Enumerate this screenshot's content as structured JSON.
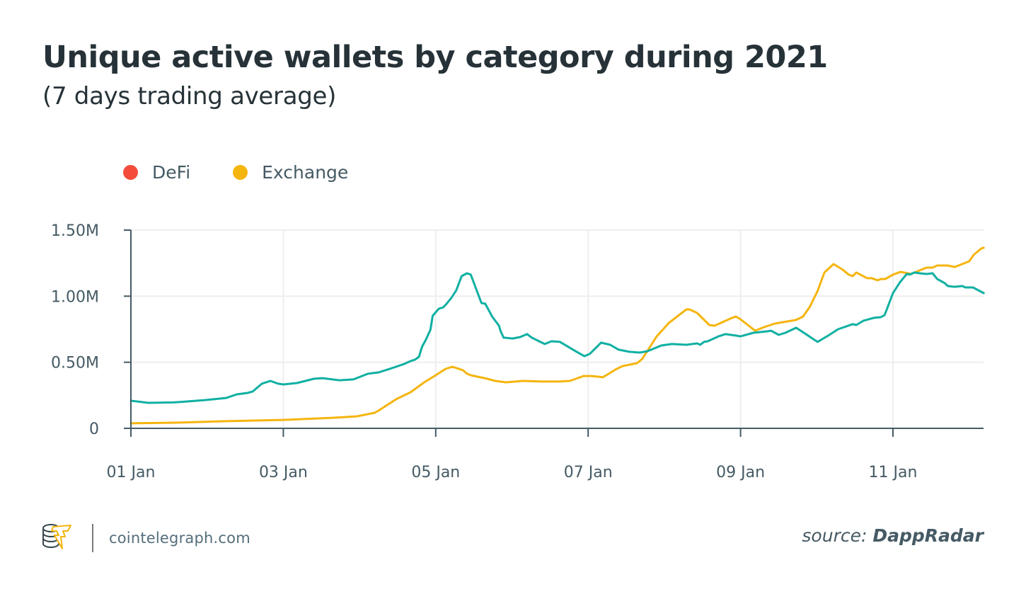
{
  "header": {
    "title": "Unique active wallets by category during 2021",
    "subtitle": "(7 days trading average)"
  },
  "legend": {
    "items": [
      {
        "label": "DeFi",
        "color": "#f44c3b"
      },
      {
        "label": "Exchange",
        "color": "#f5b50f"
      }
    ]
  },
  "footer": {
    "site": "cointelegraph.com",
    "source_prefix": "source:",
    "source_name": "DappRadar",
    "logo_icon": "cointelegraph-coins-bolt-icon"
  },
  "colors": {
    "defi_line": "#10b0a2",
    "exchange_line": "#f5b50f",
    "axis": "#455a64",
    "grid": "#eeeeee"
  },
  "chart_data": {
    "type": "line",
    "title": "Unique active wallets by category during 2021",
    "subtitle": "(7 days trading average)",
    "xlabel": "",
    "ylabel": "",
    "x_unit": "days since 01 Jan",
    "xlim": [
      0,
      11.19
    ],
    "ylim": [
      0,
      1.5
    ],
    "y_unit": "millions of wallets",
    "y_ticks": [
      0,
      0.5,
      1.0,
      1.5
    ],
    "y_tick_labels": [
      "0",
      "0.50M",
      "1.00M",
      "1.50M"
    ],
    "x_ticks": [
      0,
      2,
      4,
      6,
      8,
      10
    ],
    "x_tick_labels": [
      "01 Jan",
      "03 Jan",
      "05 Jan",
      "07 Jan",
      "09 Jan",
      "11 Jan"
    ],
    "grid": true,
    "legend_position": "top-left",
    "series": [
      {
        "name": "DeFi",
        "x": [
          0,
          0.23,
          0.56,
          0.65,
          0.97,
          1.25,
          1.39,
          1.53,
          1.6,
          1.72,
          1.83,
          1.93,
          2.0,
          2.18,
          2.4,
          2.51,
          2.74,
          2.92,
          3.11,
          3.25,
          3.37,
          3.48,
          3.59,
          3.67,
          3.73,
          3.78,
          3.82,
          3.87,
          3.93,
          3.96,
          4.04,
          4.1,
          4.15,
          4.21,
          4.27,
          4.34,
          4.41,
          4.46,
          4.6,
          4.65,
          4.74,
          4.83,
          4.85,
          4.89,
          5.01,
          5.11,
          5.2,
          5.26,
          5.43,
          5.52,
          5.63,
          5.85,
          5.95,
          6.02,
          6.17,
          6.29,
          6.4,
          6.54,
          6.68,
          6.78,
          6.96,
          7.1,
          7.29,
          7.43,
          7.47,
          7.52,
          7.57,
          7.71,
          7.8,
          7.94,
          8.0,
          8.17,
          8.35,
          8.4,
          8.5,
          8.59,
          8.73,
          9.01,
          9.15,
          9.28,
          9.47,
          9.52,
          9.61,
          9.75,
          9.84,
          9.89,
          10.0,
          10.09,
          10.18,
          10.22,
          10.28,
          10.35,
          10.44,
          10.52,
          10.58,
          10.68,
          10.72,
          10.81,
          10.91,
          10.95,
          11.05,
          11.19
        ],
        "values": [
          0.209,
          0.193,
          0.196,
          0.2,
          0.214,
          0.23,
          0.257,
          0.268,
          0.279,
          0.338,
          0.359,
          0.338,
          0.332,
          0.343,
          0.375,
          0.38,
          0.364,
          0.37,
          0.413,
          0.423,
          0.445,
          0.466,
          0.488,
          0.509,
          0.52,
          0.541,
          0.616,
          0.67,
          0.745,
          0.852,
          0.905,
          0.916,
          0.948,
          0.991,
          1.045,
          1.152,
          1.173,
          1.163,
          0.948,
          0.943,
          0.846,
          0.777,
          0.739,
          0.686,
          0.68,
          0.691,
          0.713,
          0.686,
          0.638,
          0.659,
          0.654,
          0.579,
          0.546,
          0.563,
          0.648,
          0.632,
          0.595,
          0.579,
          0.573,
          0.584,
          0.627,
          0.638,
          0.632,
          0.643,
          0.632,
          0.654,
          0.659,
          0.696,
          0.713,
          0.702,
          0.696,
          0.723,
          0.734,
          0.739,
          0.707,
          0.723,
          0.761,
          0.654,
          0.702,
          0.75,
          0.788,
          0.782,
          0.814,
          0.836,
          0.841,
          0.857,
          1.023,
          1.104,
          1.168,
          1.163,
          1.179,
          1.173,
          1.168,
          1.173,
          1.13,
          1.098,
          1.077,
          1.071,
          1.077,
          1.066,
          1.066,
          1.023
        ]
      },
      {
        "name": "Exchange",
        "x": [
          0,
          0.6,
          1.25,
          2.0,
          2.65,
          2.97,
          3.2,
          3.25,
          3.48,
          3.67,
          3.85,
          4.0,
          4.13,
          4.22,
          4.36,
          4.41,
          4.46,
          4.64,
          4.78,
          4.92,
          5.15,
          5.39,
          5.62,
          5.76,
          5.94,
          6.04,
          6.13,
          6.19,
          6.27,
          6.36,
          6.45,
          6.64,
          6.71,
          6.9,
          7.06,
          7.29,
          7.33,
          7.43,
          7.59,
          7.66,
          7.89,
          7.94,
          8.0,
          8.19,
          8.31,
          8.45,
          8.73,
          8.82,
          8.91,
          9.01,
          9.1,
          9.22,
          9.33,
          9.42,
          9.47,
          9.52,
          9.66,
          9.72,
          9.8,
          9.84,
          9.9,
          10.0,
          10.1,
          10.24,
          10.35,
          10.44,
          10.52,
          10.58,
          10.72,
          10.81,
          11.0,
          11.06,
          11.16,
          11.19
        ],
        "values": [
          0.038,
          0.043,
          0.054,
          0.064,
          0.08,
          0.091,
          0.118,
          0.134,
          0.22,
          0.273,
          0.348,
          0.402,
          0.45,
          0.466,
          0.439,
          0.413,
          0.402,
          0.38,
          0.359,
          0.348,
          0.359,
          0.354,
          0.354,
          0.359,
          0.396,
          0.396,
          0.391,
          0.386,
          0.413,
          0.445,
          0.471,
          0.493,
          0.525,
          0.696,
          0.798,
          0.9,
          0.9,
          0.873,
          0.782,
          0.777,
          0.836,
          0.846,
          0.825,
          0.739,
          0.766,
          0.793,
          0.82,
          0.846,
          0.921,
          1.039,
          1.179,
          1.243,
          1.205,
          1.163,
          1.152,
          1.179,
          1.136,
          1.136,
          1.12,
          1.13,
          1.13,
          1.163,
          1.184,
          1.168,
          1.195,
          1.216,
          1.216,
          1.232,
          1.232,
          1.221,
          1.264,
          1.313,
          1.361,
          1.366
        ]
      }
    ]
  }
}
